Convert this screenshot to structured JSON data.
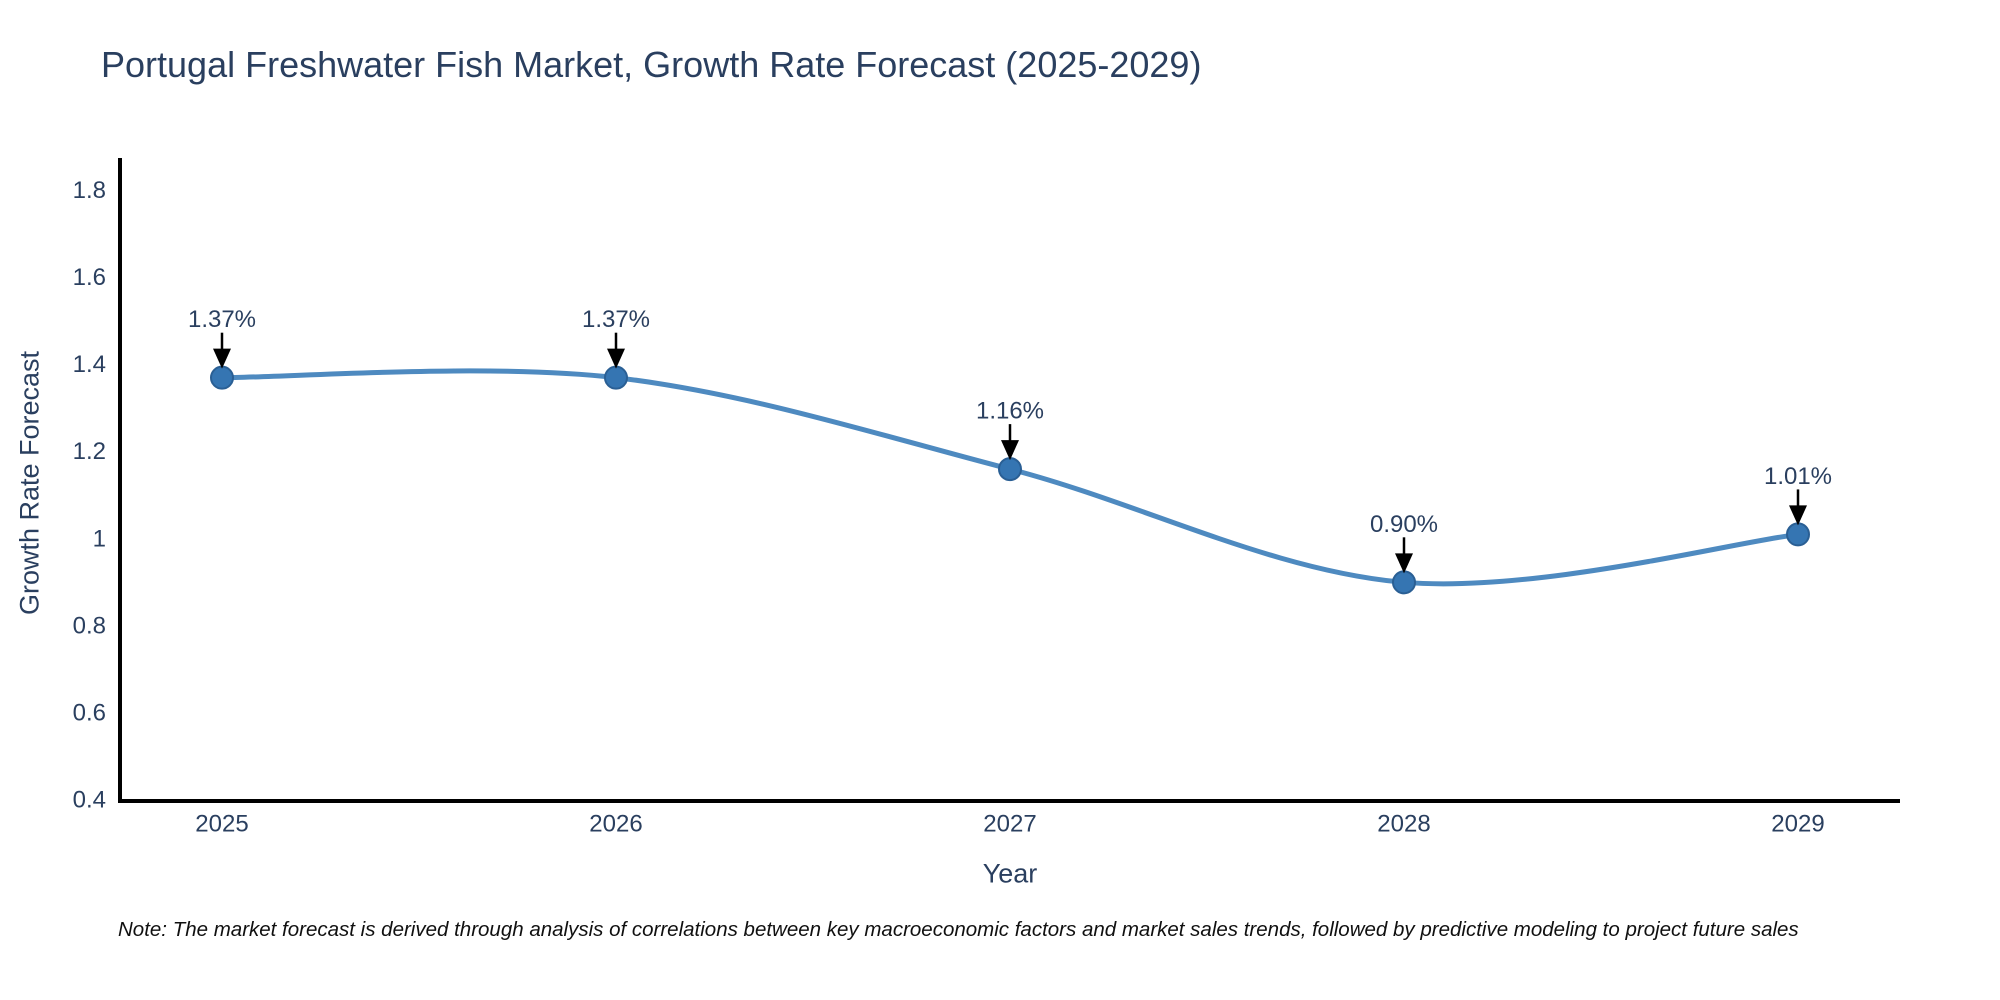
{
  "title": "Portugal Freshwater Fish Market, Growth Rate Forecast (2025-2029)",
  "note": "Note: The market forecast is derived through analysis of correlations between key macroeconomic factors and market sales trends, followed by predictive modeling to project future sales",
  "chart_data": {
    "type": "line",
    "title": "Portugal Freshwater Fish Market, Growth Rate Forecast (2025-2029)",
    "categories": [
      "2025",
      "2026",
      "2027",
      "2028",
      "2029"
    ],
    "values": [
      1.37,
      1.37,
      1.16,
      0.9,
      1.01
    ],
    "point_labels": [
      "1.37%",
      "1.37%",
      "1.16%",
      "0.90%",
      "1.01%"
    ],
    "xlabel": "Year",
    "ylabel": "Growth Rate Forecast",
    "ylim": [
      0.4,
      1.87
    ],
    "yticks": [
      0.4,
      0.6,
      0.8,
      1,
      1.2,
      1.4,
      1.6,
      1.8
    ],
    "ytick_labels": [
      "0.4",
      "0.6",
      "0.8",
      "1",
      "1.2",
      "1.4",
      "1.6",
      "1.8"
    ],
    "line_shape": "spline",
    "grid": false,
    "legend": false,
    "colors": {
      "line": "#4e8ac0",
      "marker": "#3575b2",
      "marker_edge": "#2a5f94",
      "axis": "#000000",
      "tick_text": "#2a3f5f",
      "annotation_text": "#2a3f5f",
      "arrow": "#000000",
      "background": "#ffffff"
    }
  }
}
